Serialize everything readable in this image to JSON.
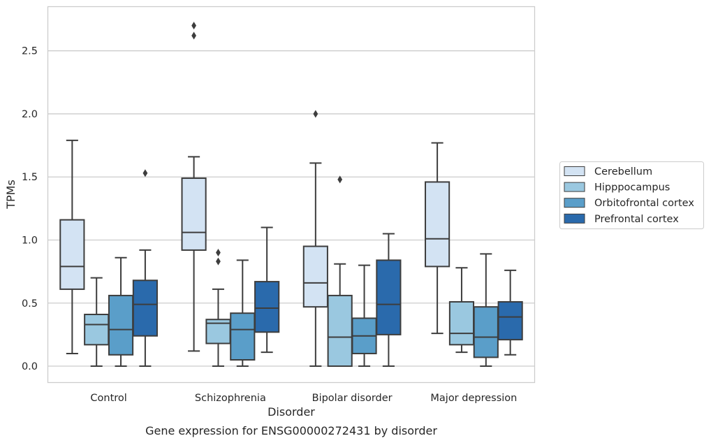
{
  "chart_data": {
    "type": "box",
    "title": "",
    "caption": "Gene expression for ENSG00000272431 by disorder",
    "xlabel": "Disorder",
    "ylabel": "TPMs",
    "ylim": [
      -0.13,
      2.85
    ],
    "yticks": [
      0.0,
      0.5,
      1.0,
      1.5,
      2.0,
      2.5
    ],
    "ytick_labels": [
      "0.0",
      "0.5",
      "1.0",
      "1.5",
      "2.0",
      "2.5"
    ],
    "grid": "horizontal",
    "legend_position": "right",
    "categories": [
      "Control",
      "Schizophrenia",
      "Bipolar disorder",
      "Major depression"
    ],
    "series": [
      {
        "name": "Cerebellum",
        "color": "#d3e3f3",
        "boxes": [
          {
            "whisker_low": 0.1,
            "q1": 0.61,
            "median": 0.79,
            "q3": 1.16,
            "whisker_high": 1.79,
            "outliers": []
          },
          {
            "whisker_low": 0.12,
            "q1": 0.92,
            "median": 1.06,
            "q3": 1.49,
            "whisker_high": 1.66,
            "outliers": [
              2.62,
              2.7
            ]
          },
          {
            "whisker_low": 0.0,
            "q1": 0.47,
            "median": 0.66,
            "q3": 0.95,
            "whisker_high": 1.61,
            "outliers": [
              2.0
            ]
          },
          {
            "whisker_low": 0.26,
            "q1": 0.79,
            "median": 1.01,
            "q3": 1.46,
            "whisker_high": 1.77,
            "outliers": []
          }
        ]
      },
      {
        "name": "Hipppocampus",
        "color": "#9ac8e0",
        "boxes": [
          {
            "whisker_low": 0.0,
            "q1": 0.17,
            "median": 0.33,
            "q3": 0.41,
            "whisker_high": 0.7,
            "outliers": []
          },
          {
            "whisker_low": 0.0,
            "q1": 0.18,
            "median": 0.34,
            "q3": 0.37,
            "whisker_high": 0.61,
            "outliers": [
              0.83,
              0.9
            ]
          },
          {
            "whisker_low": 0.0,
            "q1": 0.0,
            "median": 0.23,
            "q3": 0.56,
            "whisker_high": 0.81,
            "outliers": [
              1.48
            ]
          },
          {
            "whisker_low": 0.11,
            "q1": 0.17,
            "median": 0.26,
            "q3": 0.51,
            "whisker_high": 0.78,
            "outliers": []
          }
        ]
      },
      {
        "name": "Orbitofrontal cortex",
        "color": "#5a9ec9",
        "boxes": [
          {
            "whisker_low": 0.0,
            "q1": 0.09,
            "median": 0.29,
            "q3": 0.56,
            "whisker_high": 0.86,
            "outliers": []
          },
          {
            "whisker_low": 0.0,
            "q1": 0.05,
            "median": 0.29,
            "q3": 0.42,
            "whisker_high": 0.84,
            "outliers": []
          },
          {
            "whisker_low": 0.0,
            "q1": 0.1,
            "median": 0.24,
            "q3": 0.38,
            "whisker_high": 0.8,
            "outliers": []
          },
          {
            "whisker_low": 0.0,
            "q1": 0.07,
            "median": 0.23,
            "q3": 0.47,
            "whisker_high": 0.89,
            "outliers": []
          }
        ]
      },
      {
        "name": "Prefrontal cortex",
        "color": "#2a6aac",
        "boxes": [
          {
            "whisker_low": 0.0,
            "q1": 0.24,
            "median": 0.49,
            "q3": 0.68,
            "whisker_high": 0.92,
            "outliers": [
              1.53
            ]
          },
          {
            "whisker_low": 0.11,
            "q1": 0.27,
            "median": 0.46,
            "q3": 0.67,
            "whisker_high": 1.1,
            "outliers": []
          },
          {
            "whisker_low": 0.0,
            "q1": 0.25,
            "median": 0.49,
            "q3": 0.84,
            "whisker_high": 1.05,
            "outliers": []
          },
          {
            "whisker_low": 0.09,
            "q1": 0.21,
            "median": 0.39,
            "q3": 0.51,
            "whisker_high": 0.76,
            "outliers": []
          }
        ]
      }
    ]
  },
  "colors": {
    "box_edge": "#3d3d3d",
    "grid": "#cccccc",
    "frame": "#cccccc",
    "text": "#262626"
  }
}
